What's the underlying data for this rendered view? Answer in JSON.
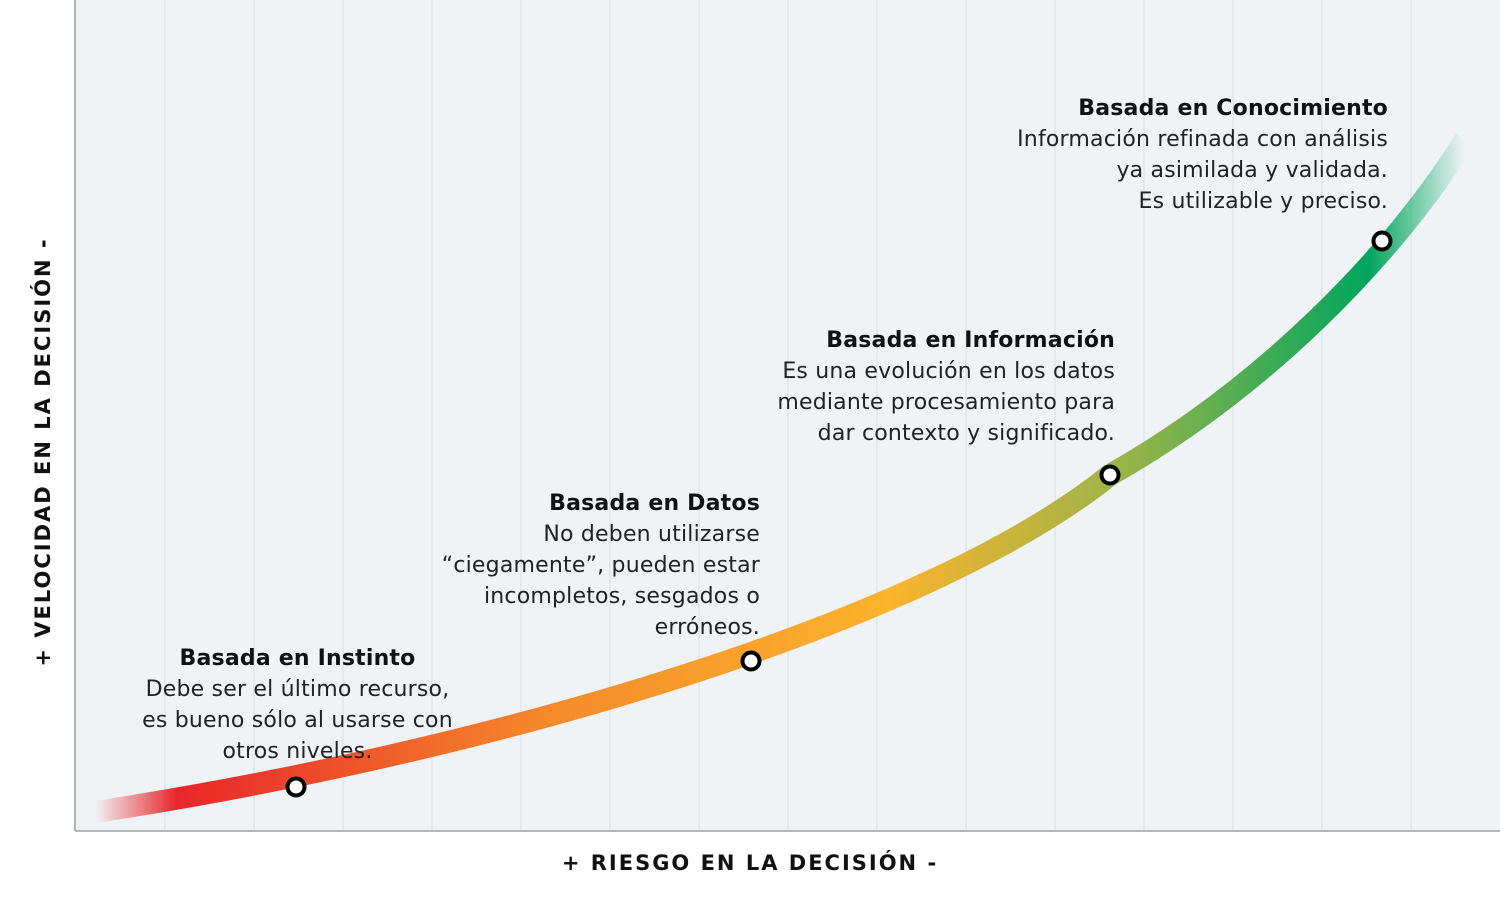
{
  "axes": {
    "x_label": "+  RIESGO EN LA DECISIÓN  -",
    "y_label": "+  VELOCIDAD EN LA DECISIÓN  -"
  },
  "colors": {
    "plot_background": "#eff3f6",
    "grid": "#d7dee4",
    "axis": "#9aa1a7",
    "red": "#e8262a",
    "orange": "#f58a2a",
    "yellow": "#fbb42c",
    "olive": "#9bb448",
    "green": "#00a65e"
  },
  "stages": [
    {
      "title": "Basada en Instinto",
      "description": "Debe ser el último recurso,\nes bueno sólo al usarse con\notros niveles."
    },
    {
      "title": "Basada en Datos",
      "description": "No deben utilizarse\n“ciegamente”, pueden estar\nincompletos, sesgados o\nerróneos."
    },
    {
      "title": "Basada en Información",
      "description": "Es una evolución en los datos\nmediante procesamiento para\ndar contexto y significado."
    },
    {
      "title": "Basada en Conocimiento",
      "description": "Información refinada con análisis\nya asimilada y validada.\nEs utilizable y preciso."
    }
  ]
}
